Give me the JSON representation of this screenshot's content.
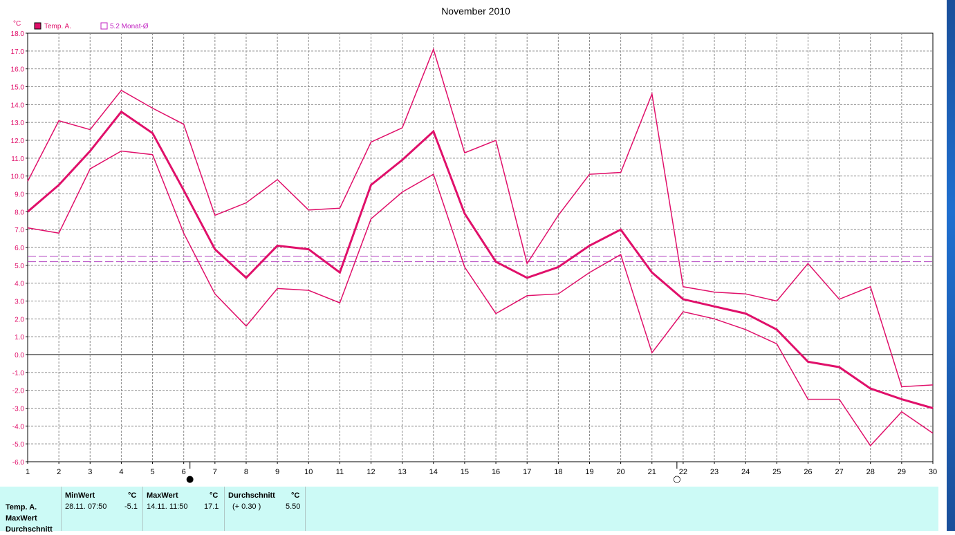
{
  "chart_data": {
    "type": "line",
    "title": "November 2010",
    "y_unit_label": "°C",
    "ylim": [
      -6.0,
      18.0
    ],
    "ytick_step": 1.0,
    "xlim": [
      1,
      30
    ],
    "x": [
      1,
      2,
      3,
      4,
      5,
      6,
      7,
      8,
      9,
      10,
      11,
      12,
      13,
      14,
      15,
      16,
      17,
      18,
      19,
      20,
      21,
      22,
      23,
      24,
      25,
      26,
      27,
      28,
      29,
      30
    ],
    "grid": true,
    "legend_placement": "top-left",
    "legend": [
      {
        "label": "Temp. A.",
        "marker": "filled-square",
        "color": "#e0106a"
      },
      {
        "label": "5.2 Monat-Ø",
        "marker": "hollow-square",
        "color": "#c020c0"
      }
    ],
    "series": [
      {
        "role": "max",
        "color": "#e0106a",
        "width": 1.5,
        "values": [
          9.7,
          13.1,
          12.6,
          14.8,
          13.8,
          12.9,
          7.8,
          8.5,
          9.8,
          8.1,
          8.2,
          11.9,
          12.7,
          17.1,
          11.3,
          12.0,
          5.1,
          7.8,
          10.1,
          10.2,
          14.6,
          3.8,
          3.5,
          3.4,
          3.0,
          5.1,
          3.1,
          3.8,
          -1.8,
          -1.7
        ]
      },
      {
        "role": "mean",
        "color": "#e0106a",
        "width": 3,
        "values": [
          8.0,
          9.5,
          11.4,
          13.6,
          12.4,
          9.2,
          5.9,
          4.3,
          6.1,
          5.9,
          4.6,
          9.5,
          10.9,
          12.5,
          7.9,
          5.2,
          4.3,
          4.9,
          6.1,
          7.0,
          4.6,
          3.1,
          2.7,
          2.3,
          1.4,
          -0.4,
          -0.7,
          -1.9,
          -2.5,
          -3.0
        ]
      },
      {
        "role": "min",
        "color": "#e0106a",
        "width": 1.5,
        "values": [
          7.1,
          6.8,
          10.4,
          11.4,
          11.2,
          6.8,
          3.4,
          1.6,
          3.7,
          3.6,
          2.9,
          7.6,
          9.1,
          10.1,
          4.9,
          2.3,
          3.3,
          3.4,
          4.6,
          5.6,
          0.1,
          2.4,
          2.0,
          1.4,
          0.6,
          -2.5,
          -2.5,
          -5.1,
          -3.2,
          -4.4
        ]
      }
    ],
    "reference_lines": [
      {
        "value": 5.5,
        "style": "dashed",
        "color": "#b040c0"
      },
      {
        "value": 5.2,
        "style": "dashed",
        "color": "#b040c0"
      }
    ],
    "moon_phases": [
      {
        "x": 6.2,
        "symbol": "●"
      },
      {
        "x": 21.8,
        "symbol": "○"
      }
    ]
  },
  "stats_table": {
    "row_labels": [
      "Temp. A.",
      "MaxWert",
      "Durchschnitt"
    ],
    "min": {
      "header": "MinWert",
      "unit": "°C",
      "when": "28.11.  07:50",
      "value": "-5.1"
    },
    "max": {
      "header": "MaxWert",
      "unit": "°C",
      "when": "14.11.  11:50",
      "value": "17.1"
    },
    "avg": {
      "header": "Durchschnitt",
      "unit": "°C",
      "note": "(+ 0.30 )",
      "value": "5.50"
    }
  }
}
